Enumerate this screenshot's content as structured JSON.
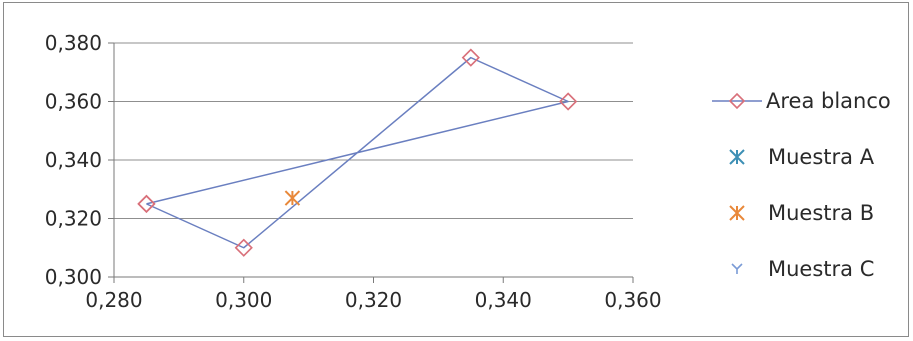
{
  "chart_data": {
    "type": "scatter",
    "title": "",
    "xlabel": "",
    "ylabel": "",
    "xlim": [
      0.28,
      0.36
    ],
    "ylim": [
      0.3,
      0.38
    ],
    "x_ticks": [
      0.28,
      0.3,
      0.32,
      0.34,
      0.36
    ],
    "y_ticks": [
      0.3,
      0.32,
      0.34,
      0.36,
      0.38
    ],
    "x_tick_labels": [
      "0,280",
      "0,300",
      "0,320",
      "0,340",
      "0,360"
    ],
    "y_tick_labels": [
      "0,300",
      "0,320",
      "0,340",
      "0,360",
      "0,380"
    ],
    "grid": "horizontal",
    "legend_position": "right",
    "series": [
      {
        "name": "Area blanco",
        "marker": "diamond",
        "line": true,
        "color": "#d9707a",
        "line_color": "#6a7fc0",
        "points": [
          {
            "x": 0.285,
            "y": 0.325
          },
          {
            "x": 0.35,
            "y": 0.36
          },
          {
            "x": 0.335,
            "y": 0.375
          },
          {
            "x": 0.3,
            "y": 0.31
          },
          {
            "x": 0.285,
            "y": 0.325
          }
        ]
      },
      {
        "name": "Muestra A",
        "marker": "asterisk",
        "line": false,
        "color": "#3d8fb5",
        "points": []
      },
      {
        "name": "Muestra B",
        "marker": "asterisk",
        "line": false,
        "color": "#e8883a",
        "points": [
          {
            "x": 0.3075,
            "y": 0.327
          }
        ]
      },
      {
        "name": "Muestra C",
        "marker": "star",
        "line": false,
        "color": "#7a9bd6",
        "points": []
      }
    ]
  }
}
